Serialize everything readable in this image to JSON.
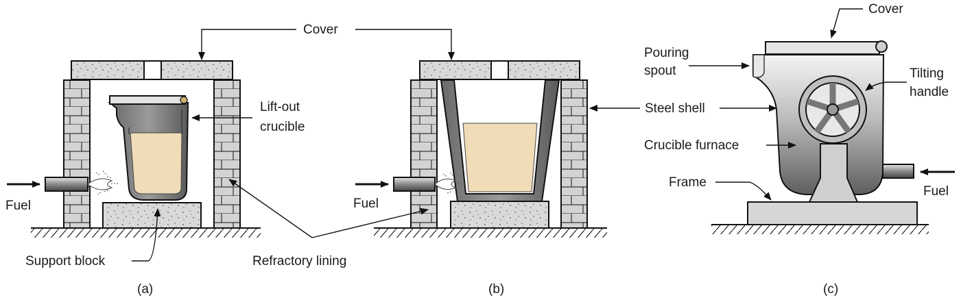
{
  "panels": [
    {
      "id": "a",
      "caption": "(a)",
      "labels": {
        "cover": "Cover",
        "crucible_line1": "Lift-out",
        "crucible_line2": "crucible",
        "fuel": "Fuel",
        "support": "Support block"
      }
    },
    {
      "id": "b",
      "caption": "(b)",
      "labels": {
        "fuel": "Fuel"
      }
    },
    {
      "id": "c",
      "caption": "(c)",
      "labels": {
        "cover": "Cover",
        "spout_line1": "Pouring",
        "spout_line2": "spout",
        "steel_shell": "Steel shell",
        "crucible_furnace": "Crucible furnace",
        "frame": "Frame",
        "handle_line1": "Tilting",
        "handle_line2": "handle",
        "fuel": "Fuel"
      }
    }
  ],
  "shared": {
    "refractory_lining": "Refractory lining"
  },
  "colors": {
    "metal": "#f0dcb7",
    "block": "#d9d9d9",
    "brick": "#d2d2d2",
    "shell_dark": "#6e6e6e",
    "shell_light": "#f2f2f2"
  }
}
